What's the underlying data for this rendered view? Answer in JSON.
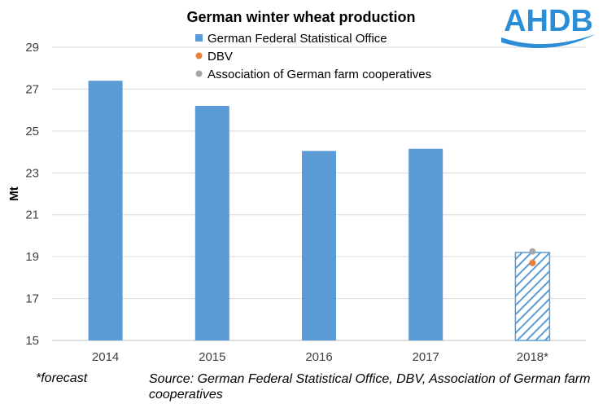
{
  "chart_data": {
    "type": "bar",
    "title": "German winter wheat production",
    "ylabel": "Mt",
    "xlabel": "",
    "ylim": [
      15,
      29
    ],
    "yticks": [
      15,
      17,
      19,
      21,
      23,
      25,
      27,
      29
    ],
    "grid": true,
    "legend_position": "top",
    "categories": [
      "2014",
      "2015",
      "2016",
      "2017",
      "2018*"
    ],
    "series": [
      {
        "name": "German Federal Statistical Office",
        "kind": "bar",
        "color": "#5B9BD5",
        "values": [
          27.4,
          26.2,
          24.05,
          24.15,
          19.2
        ],
        "forecast": [
          false,
          false,
          false,
          false,
          true
        ]
      },
      {
        "name": "DBV",
        "kind": "point",
        "color": "#ED7D31",
        "values": [
          null,
          null,
          null,
          null,
          18.7
        ]
      },
      {
        "name": "Association of German farm cooperatives",
        "kind": "point",
        "color": "#A5A5A5",
        "values": [
          null,
          null,
          null,
          null,
          19.25
        ]
      }
    ]
  },
  "logo": {
    "text": "AHDB",
    "color": "#2B8ED6"
  },
  "footnote": "*forecast",
  "source": "Source: German Federal Statistical Office, DBV, Association of German farm cooperatives"
}
